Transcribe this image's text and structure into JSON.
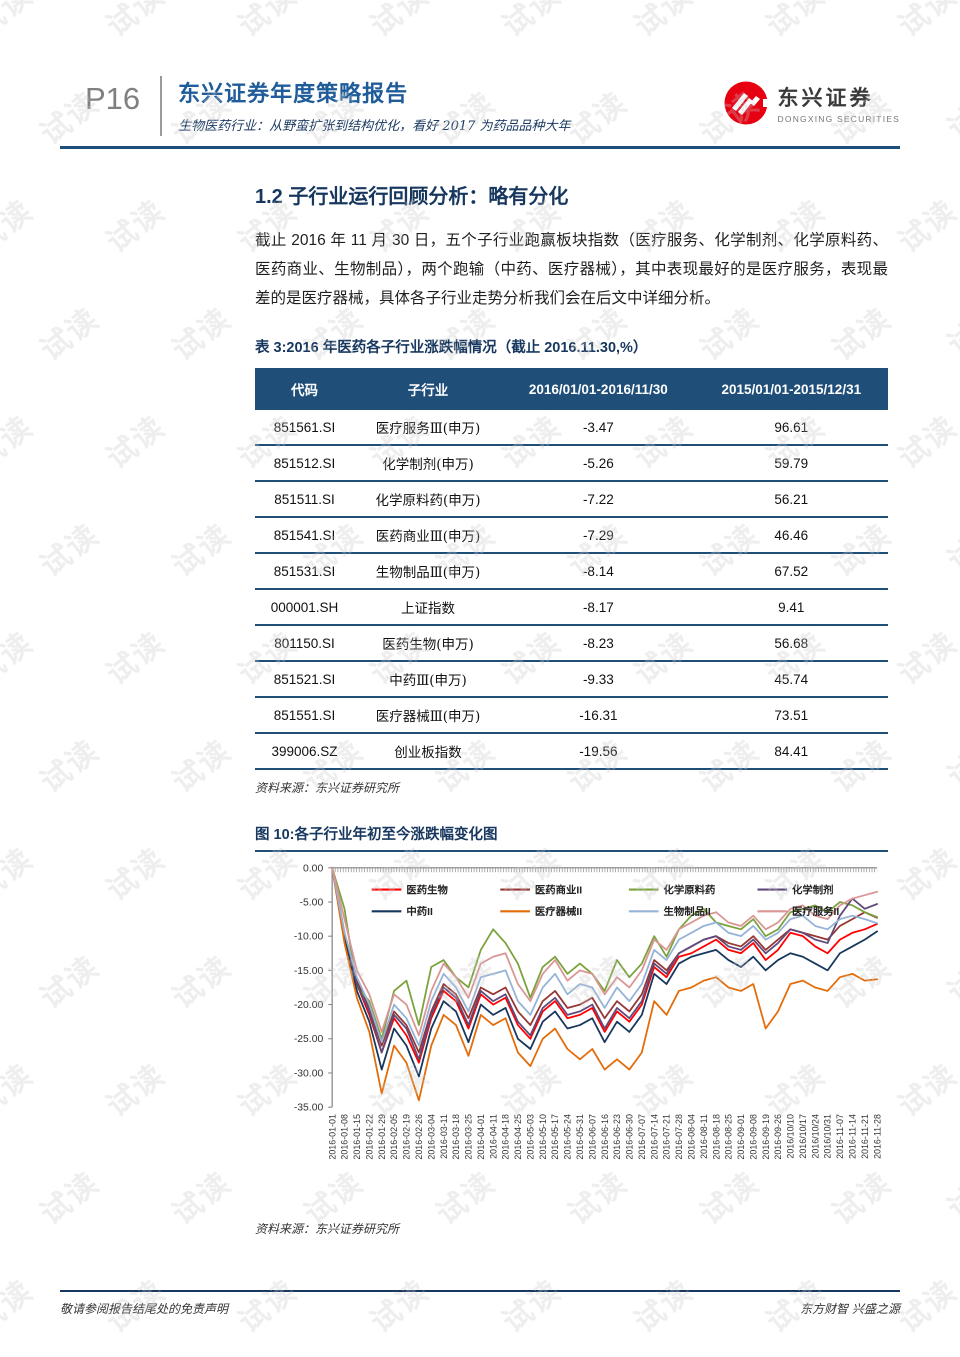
{
  "watermark": {
    "text": "试读"
  },
  "header": {
    "page_number": "P16",
    "title": "东兴证券年度策略报告",
    "subtitle": "生物医药行业：从野蛮扩张到结构优化，看好 2017 为药品品种大年",
    "logo": {
      "name": "东兴证券",
      "name_en": "DONGXING SECURITIES",
      "brand_color": "#E60012"
    }
  },
  "section": {
    "heading": "1.2 子行业运行回顾分析：略有分化",
    "paragraph": "截止 2016 年 11 月 30 日，五个子行业跑赢板块指数（医疗服务、化学制剂、化学原料药、医药商业、生物制品），两个跑输（中药、医疗器械），其中表现最好的是医疗服务，表现最差的是医疗器械，具体各子行业走势分析我们会在后文中详细分析。"
  },
  "table": {
    "title": "表 3:2016 年医药各子行业涨跌幅情况（截止 2016.11.30,%）",
    "header_bg": "#1F4E79",
    "headers": [
      "代码",
      "子行业",
      "2016/01/01-2016/11/30",
      "2015/01/01-2015/12/31"
    ],
    "rows": [
      [
        "851561.SI",
        "医疗服务Ⅲ(申万)",
        "-3.47",
        "96.61"
      ],
      [
        "851512.SI",
        "化学制剂(申万)",
        "-5.26",
        "59.79"
      ],
      [
        "851511.SI",
        "化学原料药(申万)",
        "-7.22",
        "56.21"
      ],
      [
        "851541.SI",
        "医药商业Ⅲ(申万)",
        "-7.29",
        "46.46"
      ],
      [
        "851531.SI",
        "生物制品Ⅲ(申万)",
        "-8.14",
        "67.52"
      ],
      [
        "000001.SH",
        "上证指数",
        "-8.17",
        "9.41"
      ],
      [
        "801150.SI",
        "医药生物(申万)",
        "-8.23",
        "56.68"
      ],
      [
        "851521.SI",
        "中药Ⅲ(申万)",
        "-9.33",
        "45.74"
      ],
      [
        "851551.SI",
        "医疗器械Ⅲ(申万)",
        "-16.31",
        "73.51"
      ],
      [
        "399006.SZ",
        "创业板指数",
        "-19.56",
        "84.41"
      ]
    ],
    "source": "资料来源：东兴证券研究所"
  },
  "figure": {
    "title": "图 10:各子行业年初至今涨跌幅变化图",
    "source": "资料来源：东兴证券研究所"
  },
  "chart_data": {
    "type": "line",
    "title": "各子行业年初至今涨跌幅变化图",
    "ylim": [
      -35,
      0
    ],
    "yticks": [
      "0.00",
      "-5.00",
      "-10.00",
      "-15.00",
      "-20.00",
      "-25.00",
      "-30.00",
      "-35.00"
    ],
    "grid": false,
    "legend_position": "top-left-inside",
    "x": [
      "2016-01-01",
      "2016-01-08",
      "2016-01-15",
      "2016-01-22",
      "2016-01-29",
      "2016-02-05",
      "2016-02-19",
      "2016-02-26",
      "2016-03-04",
      "2016-03-11",
      "2016-03-18",
      "2016-03-25",
      "2016-04-01",
      "2016-04-11",
      "2016-04-18",
      "2016-04-25",
      "2016-05-03",
      "2016-05-10",
      "2016-05-17",
      "2016-05-24",
      "2016-05-31",
      "2016-06-07",
      "2016-06-16",
      "2016-06-23",
      "2016-06-30",
      "2016-07-07",
      "2016-07-14",
      "2016-07-21",
      "2016-07-28",
      "2016-08-04",
      "2016-08-11",
      "2016-08-18",
      "2016-08-25",
      "2016-09-01",
      "2016-09-08",
      "2016-09-19",
      "2016-09-26",
      "2016/10/10",
      "2016/10/17",
      "2016/10/24",
      "2016/10/31",
      "2016-11-07",
      "2016-11-14",
      "2016-11-21",
      "2016-11-28"
    ],
    "series": [
      {
        "name": "医药生物",
        "color": "#FF0000",
        "values": [
          0,
          -10.0,
          -17.0,
          -21.5,
          -27.0,
          -22.0,
          -24.5,
          -28.5,
          -22.0,
          -18.0,
          -19.5,
          -23.5,
          -18.5,
          -20.0,
          -19.0,
          -23.0,
          -25.0,
          -21.0,
          -19.5,
          -22.0,
          -21.5,
          -20.5,
          -24.0,
          -21.0,
          -22.5,
          -20.0,
          -14.5,
          -16.0,
          -13.0,
          -12.5,
          -11.5,
          -10.5,
          -12.0,
          -12.5,
          -11.0,
          -13.5,
          -12.0,
          -9.5,
          -10.0,
          -11.5,
          -12.5,
          -10.5,
          -9.5,
          -9.0,
          -8.2
        ]
      },
      {
        "name": "医药商业II",
        "color": "#953735",
        "values": [
          0,
          -9.5,
          -16.5,
          -20.5,
          -26.0,
          -21.0,
          -23.0,
          -27.0,
          -21.0,
          -17.0,
          -18.5,
          -22.0,
          -17.5,
          -18.5,
          -17.5,
          -21.0,
          -23.0,
          -19.5,
          -18.0,
          -20.5,
          -20.0,
          -19.0,
          -22.0,
          -19.5,
          -21.0,
          -18.5,
          -13.5,
          -15.0,
          -12.5,
          -11.5,
          -10.5,
          -10.0,
          -11.0,
          -11.5,
          -10.0,
          -12.0,
          -10.5,
          -9.0,
          -9.5,
          -10.0,
          -10.5,
          -8.5,
          -7.5,
          -6.5,
          -7.3
        ]
      },
      {
        "name": "化学原料药",
        "color": "#7BA23C",
        "values": [
          0,
          -6.0,
          -17.5,
          -19.5,
          -25.0,
          -18.0,
          -16.5,
          -23.0,
          -14.5,
          -13.5,
          -16.0,
          -17.5,
          -12.0,
          -9.0,
          -11.0,
          -14.0,
          -19.0,
          -14.5,
          -13.0,
          -15.5,
          -14.0,
          -15.5,
          -18.0,
          -13.5,
          -16.0,
          -14.0,
          -10.0,
          -13.0,
          -9.0,
          -7.0,
          -6.0,
          -8.0,
          -8.5,
          -9.0,
          -7.5,
          -10.0,
          -9.0,
          -6.5,
          -6.0,
          -5.5,
          -6.5,
          -5.0,
          -5.5,
          -6.5,
          -7.2
        ]
      },
      {
        "name": "化学制剂",
        "color": "#604A7B",
        "values": [
          0,
          -9.8,
          -17.0,
          -21.0,
          -27.0,
          -21.5,
          -23.5,
          -28.0,
          -21.5,
          -17.5,
          -19.0,
          -23.0,
          -18.0,
          -19.5,
          -18.5,
          -22.5,
          -24.5,
          -20.5,
          -19.0,
          -21.5,
          -21.0,
          -20.0,
          -23.5,
          -20.5,
          -22.0,
          -19.5,
          -14.0,
          -15.5,
          -12.5,
          -11.5,
          -10.5,
          -10.0,
          -11.5,
          -12.0,
          -10.5,
          -12.5,
          -11.0,
          -9.0,
          -9.5,
          -10.5,
          -11.0,
          -7.0,
          -4.5,
          -6.0,
          -5.3
        ]
      },
      {
        "name": "中药II",
        "color": "#17375D",
        "values": [
          0,
          -10.5,
          -18.0,
          -22.5,
          -29.5,
          -23.5,
          -26.0,
          -30.5,
          -23.5,
          -19.5,
          -21.0,
          -25.5,
          -20.0,
          -21.5,
          -20.5,
          -25.0,
          -26.5,
          -22.5,
          -21.0,
          -23.5,
          -23.0,
          -22.0,
          -25.5,
          -22.5,
          -24.0,
          -21.5,
          -15.5,
          -17.0,
          -14.0,
          -13.0,
          -12.5,
          -12.0,
          -13.5,
          -14.5,
          -13.0,
          -15.0,
          -13.5,
          -12.5,
          -13.0,
          -14.0,
          -15.0,
          -12.5,
          -11.5,
          -10.5,
          -9.3
        ]
      },
      {
        "name": "医疗器械II",
        "color": "#E36C09",
        "values": [
          0,
          -11.0,
          -19.0,
          -24.0,
          -33.0,
          -26.0,
          -28.5,
          -34.0,
          -26.0,
          -21.5,
          -23.0,
          -27.5,
          -21.5,
          -23.0,
          -22.0,
          -27.0,
          -29.0,
          -25.0,
          -23.5,
          -26.5,
          -28.0,
          -26.5,
          -29.5,
          -28.0,
          -29.5,
          -27.0,
          -19.5,
          -21.5,
          -18.0,
          -17.5,
          -16.5,
          -16.0,
          -17.5,
          -18.0,
          -17.0,
          -23.5,
          -21.0,
          -17.0,
          -16.5,
          -17.5,
          -18.0,
          -16.0,
          -15.5,
          -16.5,
          -16.3
        ]
      },
      {
        "name": "生物制品II",
        "color": "#95B3D7",
        "values": [
          0,
          -9.5,
          -16.0,
          -20.0,
          -25.5,
          -20.0,
          -22.0,
          -26.0,
          -19.5,
          -15.5,
          -17.5,
          -21.0,
          -16.0,
          -15.5,
          -15.0,
          -19.5,
          -21.5,
          -17.5,
          -15.5,
          -18.5,
          -17.0,
          -17.5,
          -20.5,
          -17.5,
          -19.5,
          -17.0,
          -12.0,
          -13.5,
          -10.5,
          -9.5,
          -8.5,
          -8.0,
          -9.5,
          -10.0,
          -8.5,
          -10.5,
          -9.5,
          -7.5,
          -7.0,
          -8.5,
          -9.0,
          -7.5,
          -7.0,
          -7.5,
          -8.1
        ]
      },
      {
        "name": "医疗服务II",
        "color": "#D99694",
        "values": [
          0,
          -7.5,
          -15.0,
          -18.5,
          -24.0,
          -18.5,
          -20.0,
          -24.5,
          -18.0,
          -14.0,
          -16.0,
          -19.0,
          -14.0,
          -13.0,
          -12.5,
          -17.0,
          -19.5,
          -15.5,
          -13.5,
          -16.5,
          -15.0,
          -15.5,
          -18.5,
          -16.0,
          -17.5,
          -15.0,
          -10.5,
          -12.0,
          -9.0,
          -8.0,
          -7.0,
          -6.5,
          -8.0,
          -8.5,
          -7.0,
          -9.0,
          -8.0,
          -6.0,
          -5.5,
          -7.0,
          -7.5,
          -5.5,
          -4.5,
          -4.0,
          -3.5
        ]
      }
    ]
  },
  "footer": {
    "left": "敬请参阅报告结尾处的免责声明",
    "right": "东方财智 兴盛之源"
  }
}
